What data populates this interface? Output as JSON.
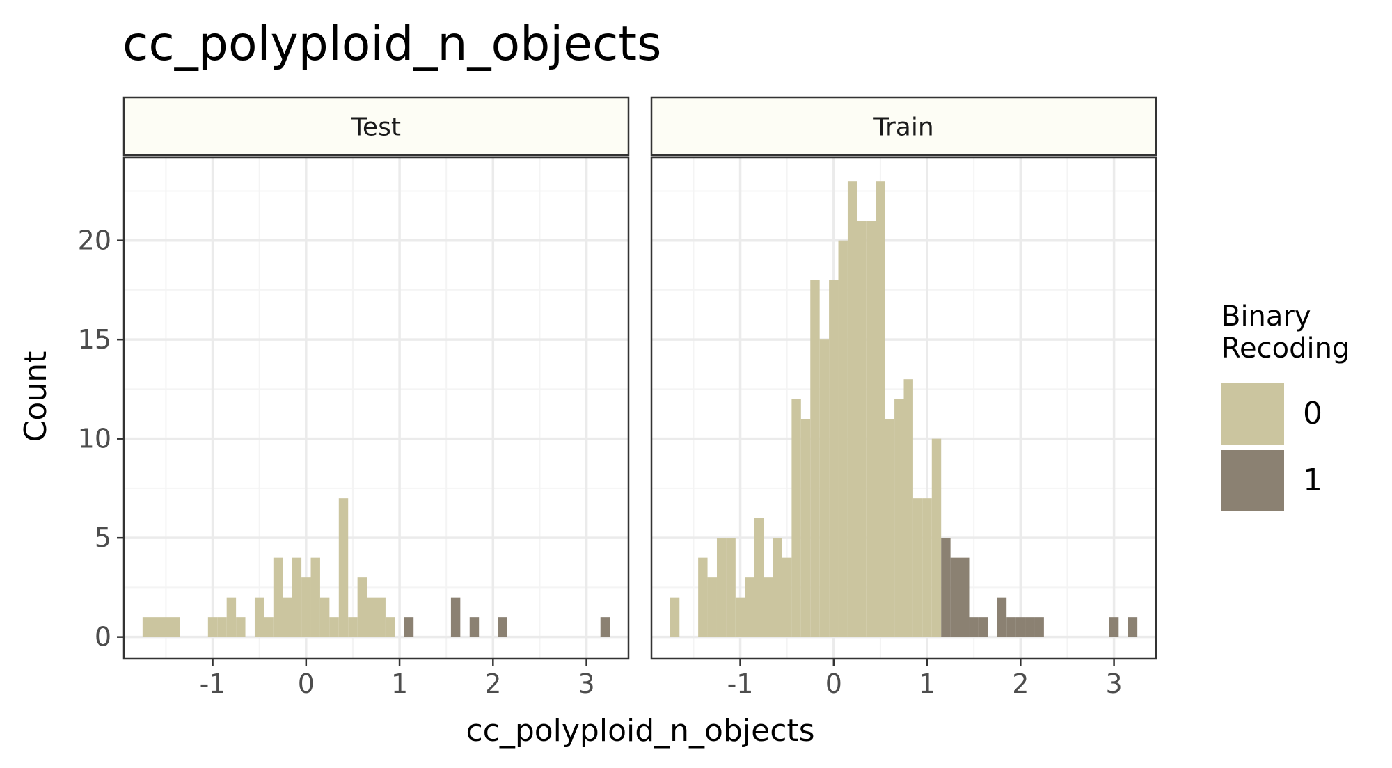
{
  "chart_data": {
    "type": "bar",
    "title": "cc_polyploid_n_objects",
    "xlabel": "cc_polyploid_n_objects",
    "ylabel": "Count",
    "xlim": [
      -1.95,
      3.45
    ],
    "ylim": [
      -1.1,
      24.2
    ],
    "x_ticks": [
      -1,
      0,
      1,
      2,
      3
    ],
    "x_tick_labels": [
      "-1",
      "0",
      "1",
      "2",
      "3"
    ],
    "y_ticks": [
      0,
      5,
      10,
      15,
      20
    ],
    "y_tick_labels": [
      "0",
      "5",
      "10",
      "15",
      "20"
    ],
    "bin_width": 0.1,
    "grid": true,
    "legend": {
      "title": "Binary\nRecoding",
      "position": "right",
      "items": [
        {
          "label": "0",
          "color": "#cbc59f"
        },
        {
          "label": "1",
          "color": "#8b8172"
        }
      ]
    },
    "panels": [
      {
        "name": "Test",
        "bars": [
          {
            "x": -1.7,
            "count": 1,
            "group": "0"
          },
          {
            "x": -1.6,
            "count": 1,
            "group": "0"
          },
          {
            "x": -1.5,
            "count": 1,
            "group": "0"
          },
          {
            "x": -1.4,
            "count": 1,
            "group": "0"
          },
          {
            "x": -1.0,
            "count": 1,
            "group": "0"
          },
          {
            "x": -0.9,
            "count": 1,
            "group": "0"
          },
          {
            "x": -0.8,
            "count": 2,
            "group": "0"
          },
          {
            "x": -0.7,
            "count": 1,
            "group": "0"
          },
          {
            "x": -0.5,
            "count": 2,
            "group": "0"
          },
          {
            "x": -0.4,
            "count": 1,
            "group": "0"
          },
          {
            "x": -0.3,
            "count": 4,
            "group": "0"
          },
          {
            "x": -0.2,
            "count": 2,
            "group": "0"
          },
          {
            "x": -0.1,
            "count": 4,
            "group": "0"
          },
          {
            "x": 0.0,
            "count": 3,
            "group": "0"
          },
          {
            "x": 0.1,
            "count": 4,
            "group": "0"
          },
          {
            "x": 0.2,
            "count": 2,
            "group": "0"
          },
          {
            "x": 0.3,
            "count": 1,
            "group": "0"
          },
          {
            "x": 0.4,
            "count": 7,
            "group": "0"
          },
          {
            "x": 0.5,
            "count": 1,
            "group": "0"
          },
          {
            "x": 0.6,
            "count": 3,
            "group": "0"
          },
          {
            "x": 0.7,
            "count": 2,
            "group": "0"
          },
          {
            "x": 0.8,
            "count": 2,
            "group": "0"
          },
          {
            "x": 0.9,
            "count": 1,
            "group": "0"
          },
          {
            "x": 1.1,
            "count": 1,
            "group": "1"
          },
          {
            "x": 1.6,
            "count": 2,
            "group": "1"
          },
          {
            "x": 1.8,
            "count": 1,
            "group": "1"
          },
          {
            "x": 2.1,
            "count": 1,
            "group": "1"
          },
          {
            "x": 3.2,
            "count": 1,
            "group": "1"
          }
        ]
      },
      {
        "name": "Train",
        "bars": [
          {
            "x": -1.7,
            "count": 2,
            "group": "0"
          },
          {
            "x": -1.4,
            "count": 4,
            "group": "0"
          },
          {
            "x": -1.3,
            "count": 3,
            "group": "0"
          },
          {
            "x": -1.2,
            "count": 5,
            "group": "0"
          },
          {
            "x": -1.1,
            "count": 5,
            "group": "0"
          },
          {
            "x": -1.0,
            "count": 2,
            "group": "0"
          },
          {
            "x": -0.9,
            "count": 3,
            "group": "0"
          },
          {
            "x": -0.8,
            "count": 6,
            "group": "0"
          },
          {
            "x": -0.7,
            "count": 3,
            "group": "0"
          },
          {
            "x": -0.6,
            "count": 5,
            "group": "0"
          },
          {
            "x": -0.5,
            "count": 4,
            "group": "0"
          },
          {
            "x": -0.4,
            "count": 12,
            "group": "0"
          },
          {
            "x": -0.3,
            "count": 11,
            "group": "0"
          },
          {
            "x": -0.2,
            "count": 18,
            "group": "0"
          },
          {
            "x": -0.1,
            "count": 15,
            "group": "0"
          },
          {
            "x": 0.0,
            "count": 18,
            "group": "0"
          },
          {
            "x": 0.1,
            "count": 20,
            "group": "0"
          },
          {
            "x": 0.2,
            "count": 23,
            "group": "0"
          },
          {
            "x": 0.3,
            "count": 21,
            "group": "0"
          },
          {
            "x": 0.4,
            "count": 21,
            "group": "0"
          },
          {
            "x": 0.5,
            "count": 23,
            "group": "0"
          },
          {
            "x": 0.6,
            "count": 11,
            "group": "0"
          },
          {
            "x": 0.7,
            "count": 12,
            "group": "0"
          },
          {
            "x": 0.8,
            "count": 13,
            "group": "0"
          },
          {
            "x": 0.9,
            "count": 7,
            "group": "0"
          },
          {
            "x": 1.0,
            "count": 7,
            "group": "0"
          },
          {
            "x": 1.1,
            "count": 10,
            "group": "0"
          },
          {
            "x": 1.2,
            "count": 5,
            "group": "1"
          },
          {
            "x": 1.3,
            "count": 4,
            "group": "1"
          },
          {
            "x": 1.4,
            "count": 4,
            "group": "1"
          },
          {
            "x": 1.5,
            "count": 1,
            "group": "1"
          },
          {
            "x": 1.6,
            "count": 1,
            "group": "1"
          },
          {
            "x": 1.8,
            "count": 2,
            "group": "1"
          },
          {
            "x": 1.9,
            "count": 1,
            "group": "1"
          },
          {
            "x": 2.0,
            "count": 1,
            "group": "1"
          },
          {
            "x": 2.1,
            "count": 1,
            "group": "1"
          },
          {
            "x": 2.2,
            "count": 1,
            "group": "1"
          },
          {
            "x": 3.0,
            "count": 1,
            "group": "1"
          },
          {
            "x": 3.2,
            "count": 1,
            "group": "1"
          }
        ]
      }
    ],
    "colors": {
      "strip_fill": "#fdfdf5",
      "grid_major": "#ebebeb",
      "grid_minor": "#f4f4f4",
      "tick_text": "#4d4d4d"
    }
  }
}
